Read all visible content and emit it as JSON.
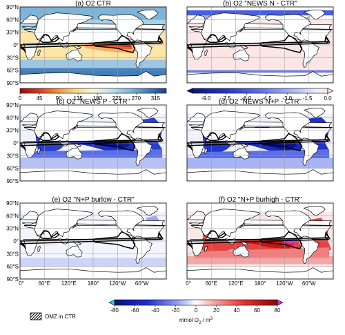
{
  "panels": [
    {
      "id": "a",
      "title": "(a) O2 CTR",
      "colormap": "climatology"
    },
    {
      "id": "b",
      "title": "(b) O2 \"NEWS N - CTR\"",
      "colormap": "anomaly-negative"
    },
    {
      "id": "c",
      "title": "(c) O2 \"NEWS P - CTR\"",
      "colormap": "anomaly"
    },
    {
      "id": "d",
      "title": "(d) O2 \"NEWS N+P - CTR\"",
      "colormap": "anomaly"
    },
    {
      "id": "e",
      "title": "(e) O2 \"N+P burlow - CTR\"",
      "colormap": "anomaly"
    },
    {
      "id": "f",
      "title": "(f) O2 \"N+P burhigh - CTR\"",
      "colormap": "anomaly"
    }
  ],
  "lat_ticks": [
    "90°N",
    "60°N",
    "30°N",
    "0°",
    "30°S",
    "60°S",
    "90°S"
  ],
  "lon_ticks": [
    "0°",
    "60°E",
    "120°E",
    "180°",
    "120°W",
    "60°W"
  ],
  "colorbar_a": {
    "ticks": [
      "0",
      "45",
      "90",
      "135",
      "180",
      "225",
      "270",
      "315"
    ],
    "min": 0,
    "max": 340
  },
  "colorbar_b": {
    "ticks": [
      "-9.0",
      "-7.5",
      "-6.0",
      "-4.5",
      "-3.0",
      "-1.5",
      "0.0"
    ],
    "min": -10,
    "max": 0
  },
  "colorbar_main": {
    "ticks": [
      "-80",
      "-60",
      "-40",
      "-20",
      "0",
      "20",
      "40",
      "60",
      "80"
    ],
    "min": -80,
    "max": 80,
    "unit_prefix": "mmol O",
    "unit_sub": "2",
    "unit_suffix": " / m",
    "unit_sup": "3"
  },
  "legend": {
    "omz_label": "OMZ in CTR"
  },
  "colors": {
    "coast": "#000000",
    "omz_contour": "#000000",
    "grid": "#9a9a9a",
    "land": "#ffffff",
    "over_magenta": "#d22bd2",
    "under_cyan": "#19d4ff"
  }
}
